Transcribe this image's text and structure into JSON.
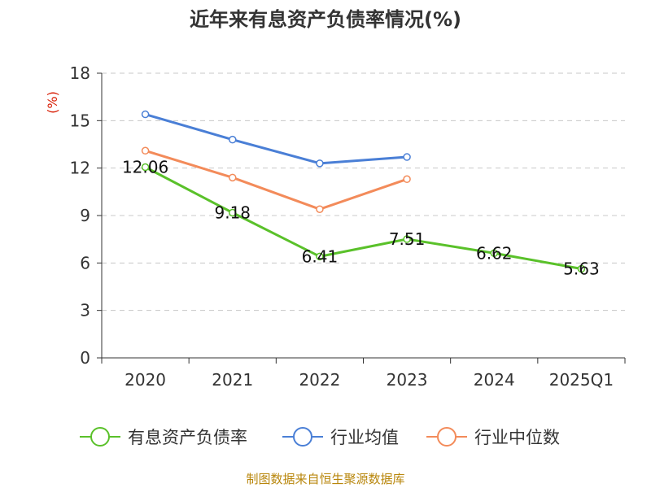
{
  "chart_data": {
    "type": "line",
    "title": "近年来有息资产负债率情况(%)",
    "ylabel": "(%)",
    "xlabel": "",
    "categories": [
      "2020",
      "2021",
      "2022",
      "2023",
      "2024",
      "2025Q1"
    ],
    "ylim": [
      0,
      18
    ],
    "yticks": [
      0,
      3,
      6,
      9,
      12,
      15,
      18
    ],
    "grid": true,
    "legend_position": "bottom",
    "series": [
      {
        "name": "有息资产负债率",
        "color": "#5ac12a",
        "values": [
          12.06,
          9.18,
          6.41,
          7.51,
          6.62,
          5.63
        ],
        "labels": [
          "12.06",
          "9.18",
          "6.41",
          "7.51",
          "6.62",
          "5.63"
        ]
      },
      {
        "name": "行业均值",
        "color": "#4a7fd6",
        "values": [
          15.4,
          13.8,
          12.3,
          12.7,
          null,
          null
        ]
      },
      {
        "name": "行业中位数",
        "color": "#f38b5a",
        "values": [
          13.1,
          11.4,
          9.4,
          11.3,
          null,
          null
        ]
      }
    ]
  },
  "source": "制图数据来自恒生聚源数据库"
}
